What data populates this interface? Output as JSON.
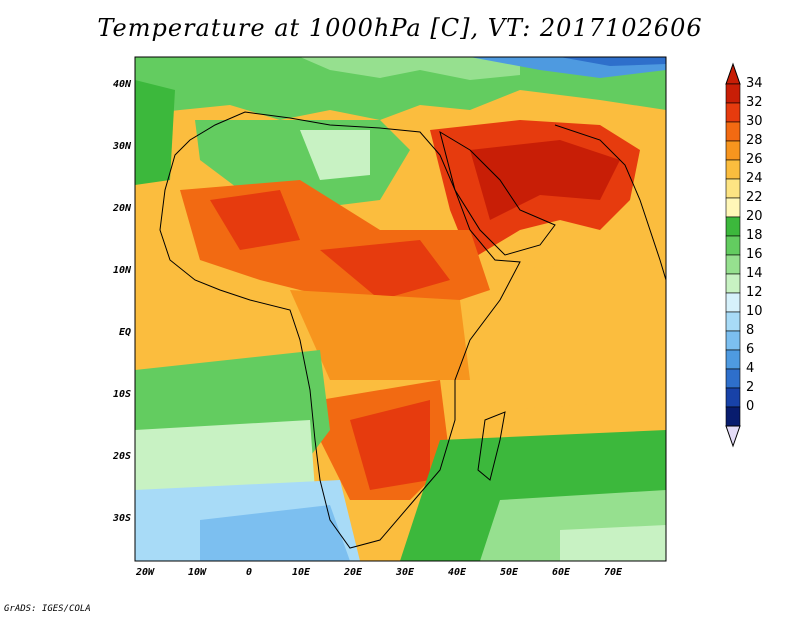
{
  "title": "Temperature at 1000hPa [C], VT: 2017102606",
  "footer": "GrADS: IGES/COLA",
  "map": {
    "y_ticks": [
      "40N",
      "30N",
      "20N",
      "10N",
      "EQ",
      "10S",
      "20S",
      "30S"
    ],
    "x_ticks": [
      "20W",
      "10W",
      "0",
      "10E",
      "20E",
      "30E",
      "40E",
      "50E",
      "60E",
      "70E"
    ]
  },
  "colorbar": {
    "labels": [
      "34",
      "32",
      "30",
      "28",
      "26",
      "24",
      "22",
      "20",
      "18",
      "16",
      "14",
      "12",
      "10",
      "8",
      "6",
      "4",
      "2",
      "0"
    ],
    "colors": [
      "#c81e06",
      "#e63b0e",
      "#f26a12",
      "#f7951e",
      "#fbbd3e",
      "#fde483",
      "#fff7b8",
      "#3cb83c",
      "#63cc60",
      "#96e08f",
      "#c8f2c3",
      "#d6f1fb",
      "#a8dbf7",
      "#7cbff0",
      "#4e9ae0",
      "#2e6fcb",
      "#1842a8",
      "#081c6e"
    ]
  }
}
